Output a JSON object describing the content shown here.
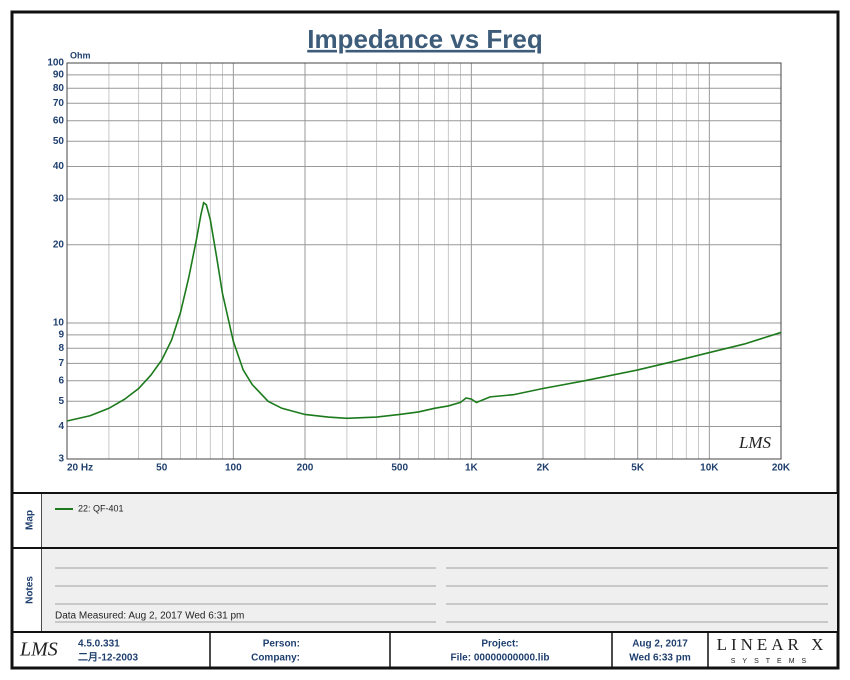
{
  "chart_data": {
    "type": "line",
    "title": "Impedance vs Freq",
    "y_label": "Ohm",
    "log_x": true,
    "log_y": true,
    "grid": true,
    "xlim": [
      20,
      20000
    ],
    "ylim": [
      3,
      100
    ],
    "xticks": [
      {
        "value": 20,
        "label": "20 Hz"
      },
      50,
      100,
      200,
      500,
      {
        "value": 1000,
        "label": "1K"
      },
      {
        "value": 2000,
        "label": "2K"
      },
      {
        "value": 5000,
        "label": "5K"
      },
      {
        "value": 10000,
        "label": "10K"
      },
      {
        "value": 20000,
        "label": "20K"
      }
    ],
    "x_minor_ticks": [
      30,
      40,
      60,
      70,
      80,
      90,
      300,
      400,
      600,
      700,
      800,
      900,
      3000,
      4000,
      6000,
      7000,
      8000,
      9000
    ],
    "yticks": [
      3,
      4,
      5,
      6,
      7,
      8,
      9,
      10,
      20,
      30,
      40,
      50,
      60,
      70,
      80,
      90,
      100
    ],
    "x": [
      20,
      25,
      30,
      35,
      40,
      45,
      50,
      55,
      60,
      65,
      70,
      73,
      75,
      77,
      80,
      85,
      90,
      100,
      110,
      120,
      140,
      160,
      200,
      250,
      300,
      400,
      500,
      600,
      700,
      800,
      900,
      950,
      1000,
      1050,
      1200,
      1500,
      2000,
      3000,
      5000,
      7000,
      10000,
      14000,
      20000
    ],
    "series": [
      {
        "name": "22: QF-401",
        "color": "#1c7a1c",
        "values": [
          4.2,
          4.4,
          4.7,
          5.1,
          5.6,
          6.3,
          7.2,
          8.6,
          11,
          15,
          21,
          26,
          29,
          28.5,
          25,
          18,
          13,
          8.5,
          6.6,
          5.8,
          5.0,
          4.7,
          4.45,
          4.35,
          4.3,
          4.35,
          4.45,
          4.55,
          4.7,
          4.8,
          4.95,
          5.15,
          5.1,
          4.95,
          5.2,
          5.3,
          5.6,
          6.0,
          6.6,
          7.1,
          7.7,
          8.3,
          9.2
        ]
      }
    ],
    "watermark": "LMS"
  },
  "map": {
    "label": "Map"
  },
  "notes": {
    "label": "Notes",
    "measured": "Data Measured: Aug  2, 2017  Wed  6:31 pm"
  },
  "footer": {
    "logo": "LMS",
    "version": "4.5.0.331",
    "date_code": "二月-12-2003",
    "person": "Person:",
    "company": "Company:",
    "project": "Project:",
    "file": "File: 00000000000.lib",
    "date": "Aug  2, 2017",
    "time": "Wed  6:33 pm",
    "brand": "LINEAR X",
    "brand_sub": "SYSTEMS"
  }
}
